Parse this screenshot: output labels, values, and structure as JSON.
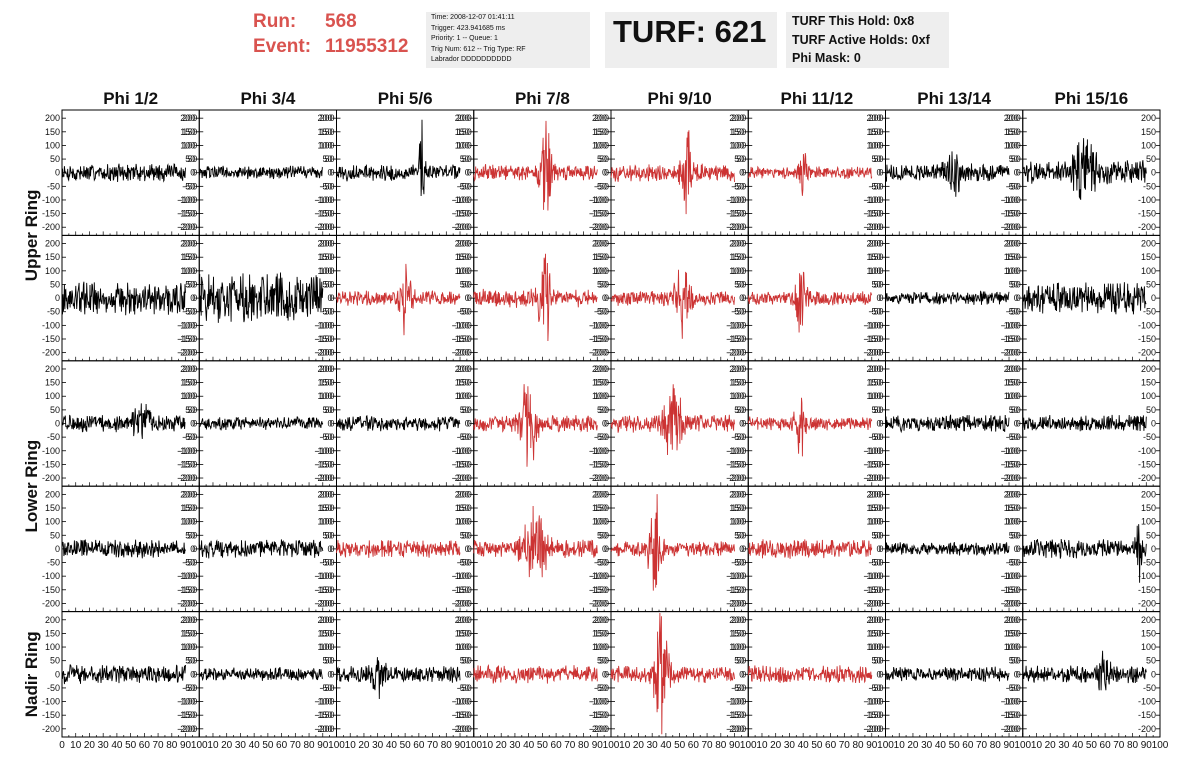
{
  "header": {
    "run_label": "Run:",
    "run_value": "568",
    "event_label": "Event:",
    "event_value": "11955312",
    "info_lines": [
      "Time: 2008-12-07 01:41:11",
      "Trigger: 423.941685 ms",
      "Priority: 1 -- Queue: 1",
      "Trig Num: 612 -- Trig Type: RF",
      "Labrador DDDDDDDDDD"
    ],
    "turf_text": "TURF: 621",
    "hold_lines": [
      "TURF This Hold: 0x8",
      "TURF Active Holds: 0xf",
      "Phi Mask: 0"
    ],
    "accent_color": "#d9534f"
  },
  "chart_data": {
    "type": "line",
    "columns": [
      "Phi 1/2",
      "Phi 3/4",
      "Phi 5/6",
      "Phi 7/8",
      "Phi 9/10",
      "Phi 11/12",
      "Phi 13/14",
      "Phi 15/16"
    ],
    "rows": [
      "Upper Ring",
      "Upper Ring",
      "Lower Ring",
      "Lower Ring",
      "Nadir Ring"
    ],
    "row_label_groups": [
      {
        "label": "Upper Ring",
        "rows": [
          0,
          1
        ]
      },
      {
        "label": "Lower Ring",
        "rows": [
          2,
          3
        ]
      },
      {
        "label": "Nadir Ring",
        "rows": [
          4,
          4
        ]
      }
    ],
    "ylim": [
      -230,
      230
    ],
    "yticks": [
      -200,
      -150,
      -100,
      -50,
      0,
      50,
      100,
      150,
      200
    ],
    "xlim": [
      0,
      100
    ],
    "xticks": [
      0,
      10,
      20,
      30,
      40,
      50,
      60,
      70,
      80,
      90,
      100
    ],
    "trace_end": 90,
    "colors": {
      "normal": "#000000",
      "triggered": "#cc3333"
    },
    "panels": [
      [
        {
          "color": "normal",
          "amp": 30,
          "bursts": []
        },
        {
          "color": "normal",
          "amp": 22,
          "bursts": []
        },
        {
          "color": "normal",
          "amp": 28,
          "bursts": [
            {
              "t": 62,
              "a": 180,
              "w": 2
            }
          ]
        },
        {
          "color": "triggered",
          "amp": 28,
          "bursts": [
            {
              "t": 53,
              "a": 170,
              "w": 4
            }
          ]
        },
        {
          "color": "triggered",
          "amp": 30,
          "bursts": [
            {
              "t": 55,
              "a": 175,
              "w": 4
            }
          ]
        },
        {
          "color": "triggered",
          "amp": 20,
          "bursts": [
            {
              "t": 40,
              "a": 85,
              "w": 3
            }
          ]
        },
        {
          "color": "normal",
          "amp": 30,
          "bursts": [
            {
              "t": 50,
              "a": 60,
              "w": 6
            }
          ]
        },
        {
          "color": "normal",
          "amp": 40,
          "bursts": [
            {
              "t": 45,
              "a": 90,
              "w": 8
            }
          ]
        }
      ],
      [
        {
          "color": "normal",
          "amp": 55,
          "bursts": []
        },
        {
          "color": "normal",
          "amp": 85,
          "bursts": []
        },
        {
          "color": "triggered",
          "amp": 25,
          "bursts": [
            {
              "t": 50,
              "a": 110,
              "w": 4
            }
          ]
        },
        {
          "color": "triggered",
          "amp": 32,
          "bursts": [
            {
              "t": 52,
              "a": 175,
              "w": 4
            }
          ]
        },
        {
          "color": "triggered",
          "amp": 25,
          "bursts": [
            {
              "t": 52,
              "a": 130,
              "w": 5
            }
          ]
        },
        {
          "color": "triggered",
          "amp": 25,
          "bursts": [
            {
              "t": 38,
              "a": 100,
              "w": 4
            }
          ]
        },
        {
          "color": "normal",
          "amp": 22,
          "bursts": []
        },
        {
          "color": "normal",
          "amp": 55,
          "bursts": []
        }
      ],
      [
        {
          "color": "normal",
          "amp": 30,
          "bursts": [
            {
              "t": 58,
              "a": 60,
              "w": 6
            }
          ]
        },
        {
          "color": "normal",
          "amp": 22,
          "bursts": []
        },
        {
          "color": "normal",
          "amp": 25,
          "bursts": []
        },
        {
          "color": "triggered",
          "amp": 28,
          "bursts": [
            {
              "t": 40,
              "a": 190,
              "w": 5
            }
          ]
        },
        {
          "color": "triggered",
          "amp": 30,
          "bursts": [
            {
              "t": 45,
              "a": 130,
              "w": 6
            }
          ]
        },
        {
          "color": "triggered",
          "amp": 22,
          "bursts": [
            {
              "t": 38,
              "a": 130,
              "w": 4
            }
          ]
        },
        {
          "color": "normal",
          "amp": 28,
          "bursts": []
        },
        {
          "color": "normal",
          "amp": 28,
          "bursts": []
        }
      ],
      [
        {
          "color": "normal",
          "amp": 30,
          "bursts": []
        },
        {
          "color": "normal",
          "amp": 32,
          "bursts": []
        },
        {
          "color": "triggered",
          "amp": 30,
          "bursts": []
        },
        {
          "color": "triggered",
          "amp": 30,
          "bursts": [
            {
              "t": 45,
              "a": 140,
              "w": 8
            }
          ]
        },
        {
          "color": "triggered",
          "amp": 25,
          "bursts": [
            {
              "t": 32,
              "a": 210,
              "w": 4
            }
          ]
        },
        {
          "color": "triggered",
          "amp": 32,
          "bursts": []
        },
        {
          "color": "normal",
          "amp": 22,
          "bursts": []
        },
        {
          "color": "normal",
          "amp": 32,
          "bursts": [
            {
              "t": 85,
              "a": 110,
              "w": 2
            }
          ]
        }
      ],
      [
        {
          "color": "normal",
          "amp": 32,
          "bursts": []
        },
        {
          "color": "normal",
          "amp": 22,
          "bursts": []
        },
        {
          "color": "normal",
          "amp": 28,
          "bursts": [
            {
              "t": 30,
              "a": 60,
              "w": 5
            }
          ]
        },
        {
          "color": "triggered",
          "amp": 30,
          "bursts": []
        },
        {
          "color": "triggered",
          "amp": 28,
          "bursts": [
            {
              "t": 36,
              "a": 210,
              "w": 5
            }
          ]
        },
        {
          "color": "triggered",
          "amp": 30,
          "bursts": []
        },
        {
          "color": "normal",
          "amp": 25,
          "bursts": []
        },
        {
          "color": "normal",
          "amp": 30,
          "bursts": [
            {
              "t": 60,
              "a": 70,
              "w": 4
            }
          ]
        }
      ]
    ]
  }
}
